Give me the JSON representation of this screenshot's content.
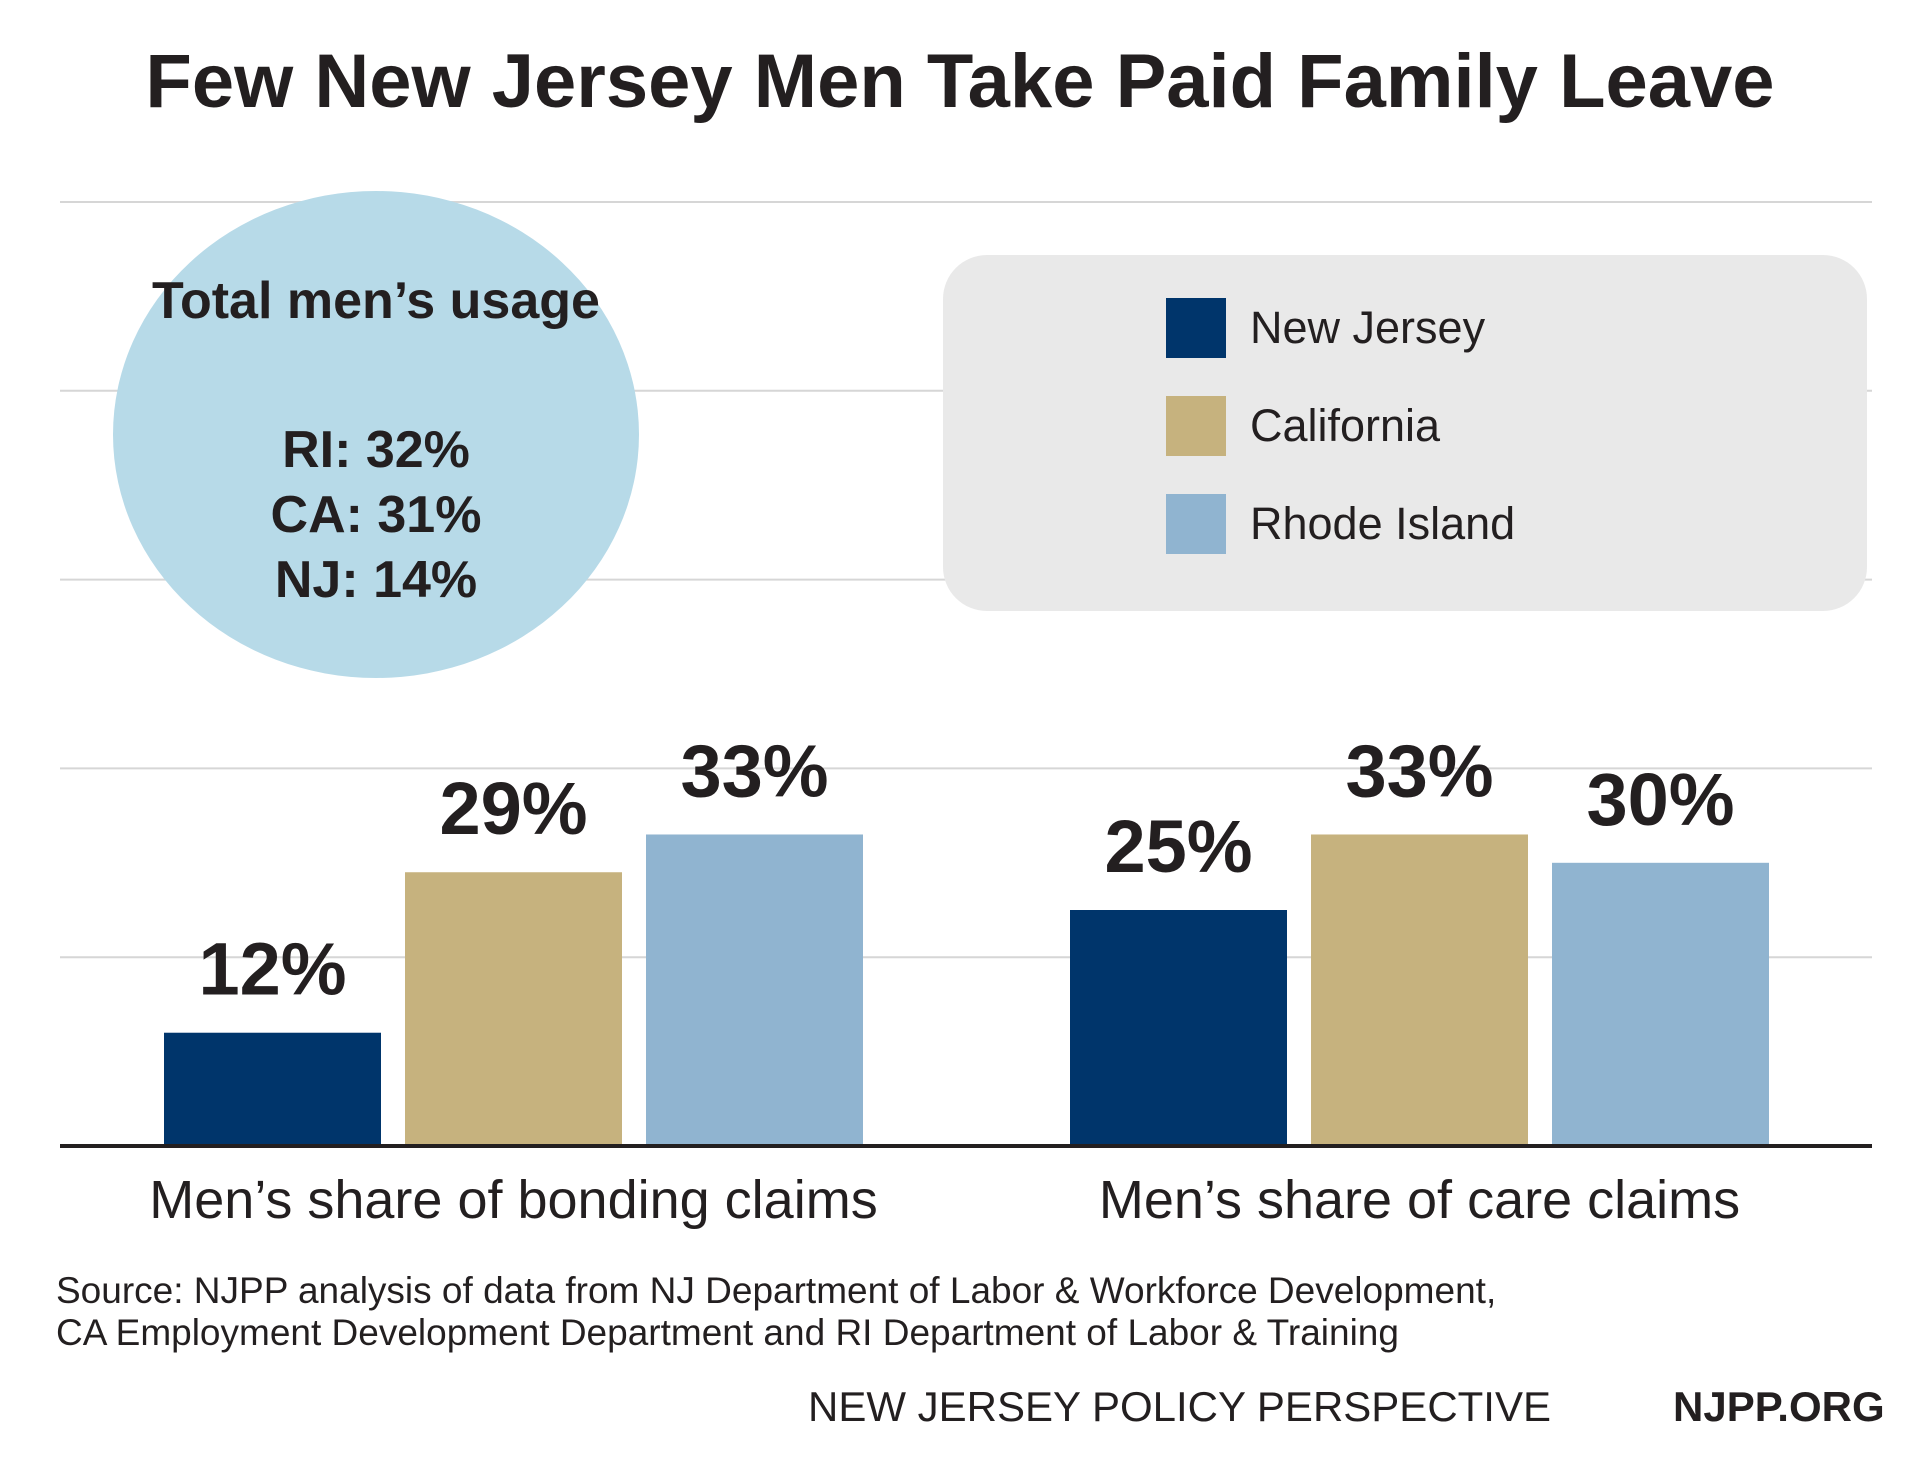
{
  "title": "Few New Jersey Men Take Paid Family Leave",
  "callout": {
    "heading": "Total men’s usage",
    "lines": [
      "RI: 32%",
      "CA: 31%",
      "NJ: 14%"
    ]
  },
  "legend": [
    {
      "label": "New Jersey",
      "color": "#00356b"
    },
    {
      "label": "California",
      "color": "#c6b27e"
    },
    {
      "label": "Rhode Island",
      "color": "#90b4d0"
    }
  ],
  "chart_data": {
    "type": "bar",
    "title": "Few New Jersey Men Take Paid Family Leave",
    "categories": [
      "Men’s share of bonding claims",
      "Men’s share of care claims"
    ],
    "series": [
      {
        "name": "New Jersey",
        "values": [
          12,
          25
        ],
        "labels": [
          "12%",
          "25%"
        ],
        "color": "#00356b"
      },
      {
        "name": "California",
        "values": [
          29,
          33
        ],
        "labels": [
          "29%",
          "33%"
        ],
        "color": "#c6b27e"
      },
      {
        "name": "Rhode Island",
        "values": [
          33,
          30
        ],
        "labels": [
          "33%",
          "30%"
        ],
        "color": "#90b4d0"
      }
    ],
    "ylim": [
      0,
      100
    ],
    "grid": true,
    "legend_position": "top-right",
    "xlabel": "",
    "ylabel": ""
  },
  "source": {
    "line1": "Source: NJPP analysis of data from NJ Department of Labor & Workforce Development,",
    "line2": "CA Employment Development Department and RI Department of Labor & Training"
  },
  "footer": {
    "org": "NEW JERSEY POLICY PERSPECTIVE",
    "url": "NJPP.ORG"
  }
}
